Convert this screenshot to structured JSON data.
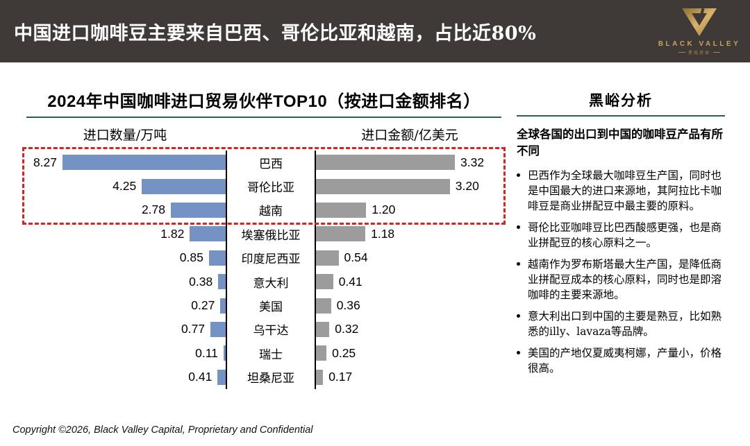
{
  "header": {
    "title": "中国进口咖啡豆主要来自巴西、哥伦比亚和越南，占比近80%",
    "logo": {
      "brand": "BLACK VALLEY",
      "brand_cn": "黑峪资本"
    }
  },
  "chart": {
    "title": "2024年中国咖啡进口贸易伙伴TOP10（按进口金额排名）",
    "left_axis_label": "进口数量/万吨",
    "right_axis_label": "进口金额/亿美元"
  },
  "chart_data": {
    "type": "bar",
    "title": "2024年中国咖啡进口贸易伙伴TOP10（按进口金额排名）",
    "layout": "tornado-mirrored-horizontal",
    "categories": [
      "巴西",
      "哥伦比亚",
      "越南",
      "埃塞俄比亚",
      "印度尼西亚",
      "意大利",
      "美国",
      "乌干达",
      "瑞士",
      "坦桑尼亚"
    ],
    "series": [
      {
        "name": "进口数量/万吨",
        "side": "left",
        "color": "#7592c5",
        "values": [
          8.27,
          4.25,
          2.78,
          1.82,
          0.85,
          0.38,
          0.27,
          0.77,
          0.11,
          0.41
        ],
        "value_labels": [
          "8.27",
          "4.25",
          "2.78",
          "1.82",
          "0.85",
          "0.38",
          "0.27",
          "0.77",
          "0.11",
          "0.41"
        ]
      },
      {
        "name": "进口金额/亿美元",
        "side": "right",
        "color": "#9c9c9c",
        "values": [
          3.32,
          3.2,
          1.2,
          1.18,
          0.54,
          0.41,
          0.36,
          0.32,
          0.25,
          0.17
        ],
        "value_labels": [
          "3.32",
          "3.20",
          "1.20",
          "1.18",
          "0.54",
          "0.41",
          "0.36",
          "0.32",
          "0.25",
          "0.17"
        ]
      }
    ],
    "highlight": {
      "rows": [
        0,
        1,
        2
      ],
      "style": "red-dashed-box",
      "color": "#e02020"
    },
    "grid": false,
    "legend_position": "none"
  },
  "analysis": {
    "title": "黑峪分析",
    "intro": "全球各国的出口到中国的咖啡豆产品有所不同",
    "bullets": [
      "巴西作为全球最大咖啡豆生产国，同时也是中国最大的进口来源地，其阿拉比卡咖啡豆是商业拼配豆中最主要的原料。",
      "哥伦比亚咖啡豆比巴西酸感更强，也是商业拼配豆的核心原料之一。",
      "越南作为罗布斯塔最大生产国，是降低商业拼配豆成本的核心原料，同时也是即溶咖啡的主要来源地。",
      "意大利出口到中国的主要是熟豆，比如熟悉的illy、lavaza等品牌。",
      "美国的产地仅夏威夷柯娜，产量小，价格很高。"
    ]
  },
  "footer": {
    "copyright": "Copyright ©2026, Black Valley Capital, Proprietary and Confidential"
  },
  "colors": {
    "header_bg": "#3f3a38",
    "bar_blue": "#7592c5",
    "bar_gray": "#9c9c9c",
    "highlight_red": "#e02020",
    "underline_teal": "#2f5d58",
    "logo_gold": "#c8a35f"
  }
}
